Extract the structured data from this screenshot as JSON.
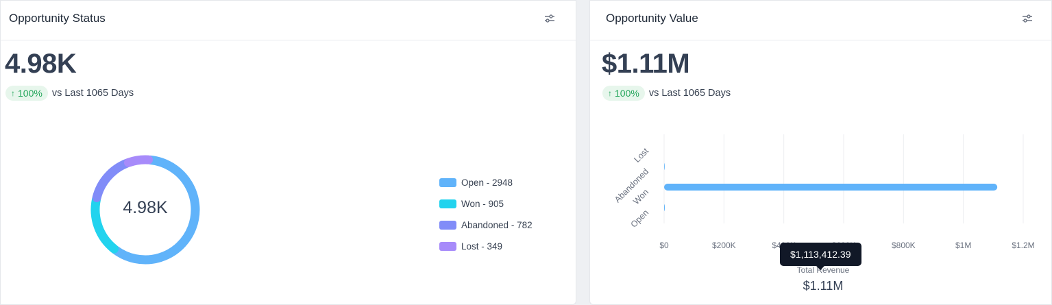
{
  "status_card": {
    "title": "Opportunity Status",
    "settings_icon": "sliders-icon",
    "total": "4.98K",
    "trend_percent": "100%",
    "trend_direction": "up",
    "trend_text": "vs Last 1065 Days",
    "donut_center": "4.98K",
    "legend": [
      {
        "label": "Open - 2948",
        "color": "#60b3fa"
      },
      {
        "label": "Won - 905",
        "color": "#22d3ee"
      },
      {
        "label": "Abandoned - 782",
        "color": "#818cf8"
      },
      {
        "label": "Lost - 349",
        "color": "#a78bfa"
      }
    ]
  },
  "value_card": {
    "title": "Opportunity Value",
    "settings_icon": "sliders-icon",
    "total": "$1.11M",
    "trend_percent": "100%",
    "trend_direction": "up",
    "trend_text": "vs Last 1065 Days",
    "total_label": "Total Revenue",
    "total_value": "$1.11M",
    "tooltip": "$1,113,412.39"
  },
  "chart_data": [
    {
      "type": "pie",
      "style": "donut",
      "categories": [
        "Open",
        "Won",
        "Abandoned",
        "Lost"
      ],
      "values": [
        2948,
        905,
        782,
        349
      ],
      "colors": [
        "#60b3fa",
        "#22d3ee",
        "#818cf8",
        "#a78bfa"
      ],
      "center_text": "4.98K",
      "legend": "right"
    },
    {
      "type": "bar",
      "orientation": "horizontal",
      "categories": [
        "Lost",
        "Abandoned",
        "Won",
        "Open"
      ],
      "values": [
        0,
        2000,
        1113412.39,
        2500
      ],
      "xlim": [
        0,
        1200000
      ],
      "xticks": [
        "$0",
        "$200K",
        "$400K",
        "$600K",
        "$800K",
        "$1M",
        "$1.2M"
      ],
      "grid": true,
      "color": "#60b3fa"
    }
  ]
}
